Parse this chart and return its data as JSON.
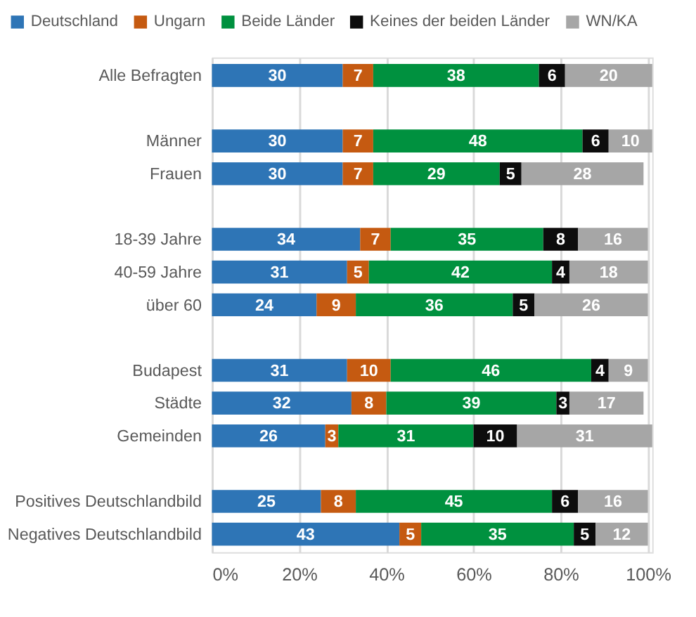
{
  "chart_data": {
    "type": "bar",
    "orientation": "horizontal",
    "stacked": true,
    "categories": [
      "Alle Befragten",
      null,
      "Männer",
      "Frauen",
      null,
      "18-39 Jahre",
      "40-59 Jahre",
      "über 60",
      null,
      "Budapest",
      "Städte",
      "Gemeinden",
      null,
      "Positives Deutschlandbild",
      "Negatives Deutschlandbild"
    ],
    "series": [
      {
        "name": "Deutschland",
        "color": "#2e75b6",
        "values": [
          30,
          null,
          30,
          30,
          null,
          34,
          31,
          24,
          null,
          31,
          32,
          26,
          null,
          25,
          43
        ]
      },
      {
        "name": "Ungarn",
        "color": "#c55a11",
        "values": [
          7,
          null,
          7,
          7,
          null,
          7,
          5,
          9,
          null,
          10,
          8,
          3,
          null,
          8,
          5
        ]
      },
      {
        "name": "Beide Länder",
        "color": "#00913f",
        "values": [
          38,
          null,
          48,
          29,
          null,
          35,
          42,
          36,
          null,
          46,
          39,
          31,
          null,
          45,
          35
        ]
      },
      {
        "name": "Keines der beiden Länder",
        "color": "#0d0d0d",
        "values": [
          6,
          null,
          6,
          5,
          null,
          8,
          4,
          5,
          null,
          4,
          3,
          10,
          null,
          6,
          5
        ]
      },
      {
        "name": "WN/KA",
        "color": "#a6a6a6",
        "values": [
          20,
          null,
          10,
          28,
          null,
          16,
          18,
          26,
          null,
          9,
          17,
          31,
          null,
          16,
          12
        ]
      }
    ],
    "xlim": [
      0,
      101
    ],
    "xticks": [
      {
        "value": 0,
        "label": "0%"
      },
      {
        "value": 20,
        "label": "20%"
      },
      {
        "value": 40,
        "label": "40%"
      },
      {
        "value": 60,
        "label": "60%"
      },
      {
        "value": 80,
        "label": "80%"
      },
      {
        "value": 100,
        "label": "100%"
      }
    ],
    "grid": "x",
    "legend": "top",
    "data_labels": true
  }
}
